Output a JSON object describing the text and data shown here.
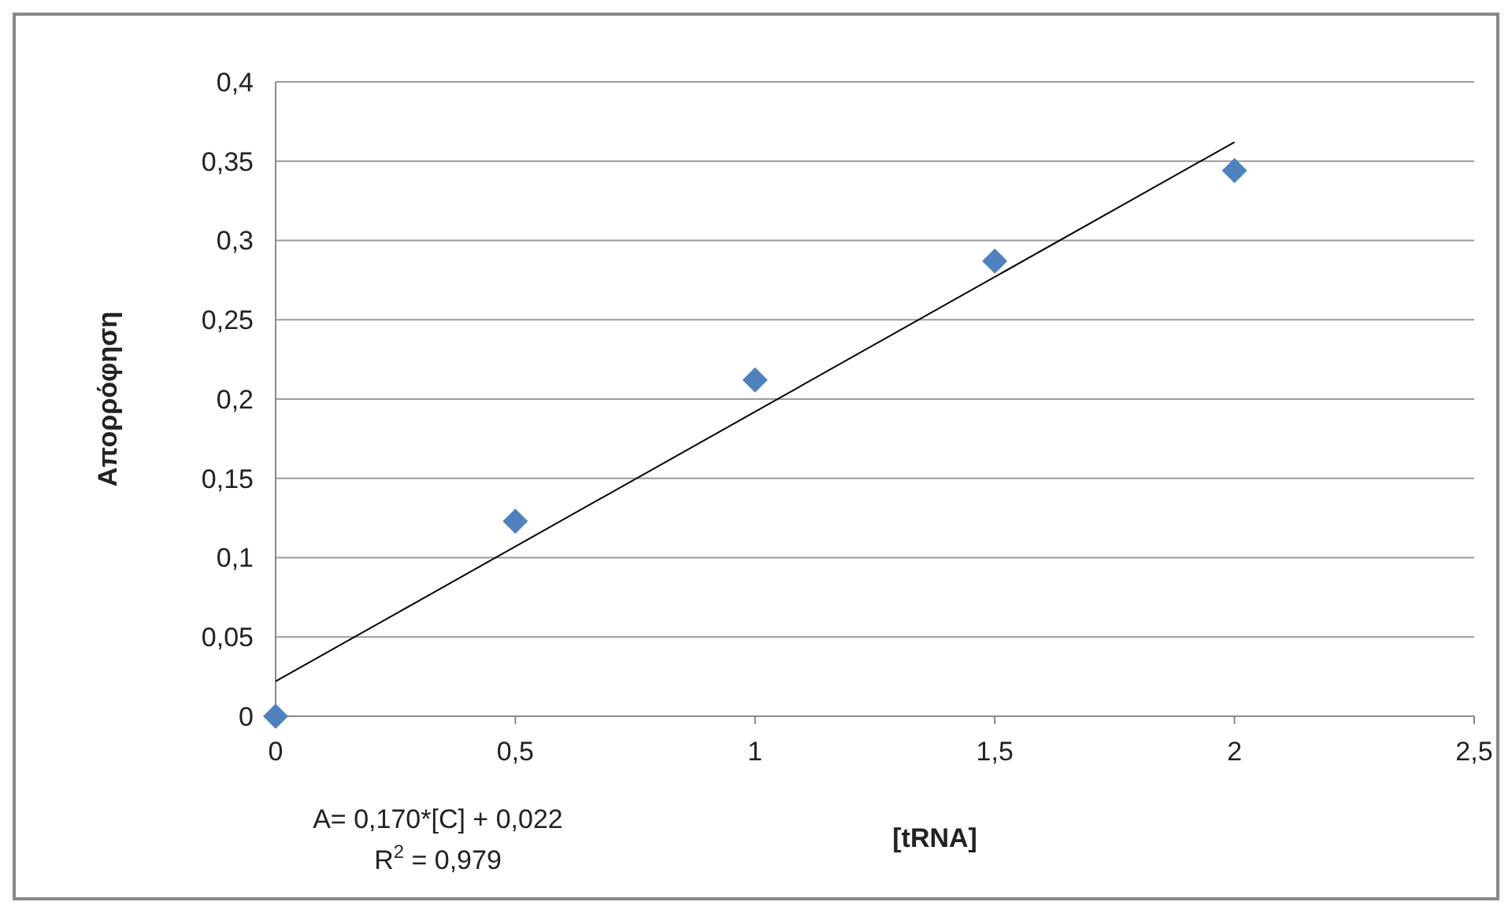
{
  "chart_data": {
    "type": "scatter",
    "xlabel": "[tRNA]",
    "ylabel": "Απορρόφηση",
    "xlim": [
      0,
      2.5
    ],
    "ylim": [
      0,
      0.4
    ],
    "xticks": [
      0,
      {
        "value": 0.5,
        "label": "0,5"
      },
      1,
      {
        "value": 1.5,
        "label": "1,5"
      },
      2,
      {
        "value": 2.5,
        "label": "2,5"
      }
    ],
    "yticks": [
      0,
      {
        "value": 0.05,
        "label": "0,05"
      },
      {
        "value": 0.1,
        "label": "0,1"
      },
      {
        "value": 0.15,
        "label": "0,15"
      },
      {
        "value": 0.2,
        "label": "0,2"
      },
      {
        "value": 0.25,
        "label": "0,25"
      },
      {
        "value": 0.3,
        "label": "0,3"
      },
      {
        "value": 0.35,
        "label": "0,35"
      },
      {
        "value": 0.4,
        "label": "0,4"
      }
    ],
    "grid": "y",
    "series": [
      {
        "marker": "diamond",
        "color": "#4f81bd",
        "x": [
          0,
          0.5,
          1,
          1.5,
          2
        ],
        "values": [
          0,
          0.123,
          0.212,
          0.287,
          0.344
        ]
      },
      {
        "type": "line",
        "color": "#000000",
        "x": [
          0,
          2
        ],
        "values": [
          0.022,
          0.362
        ]
      }
    ],
    "annotations": [
      "A= 0,170*[C] + 0,022",
      "R$^{2}$ = 0,979"
    ]
  }
}
